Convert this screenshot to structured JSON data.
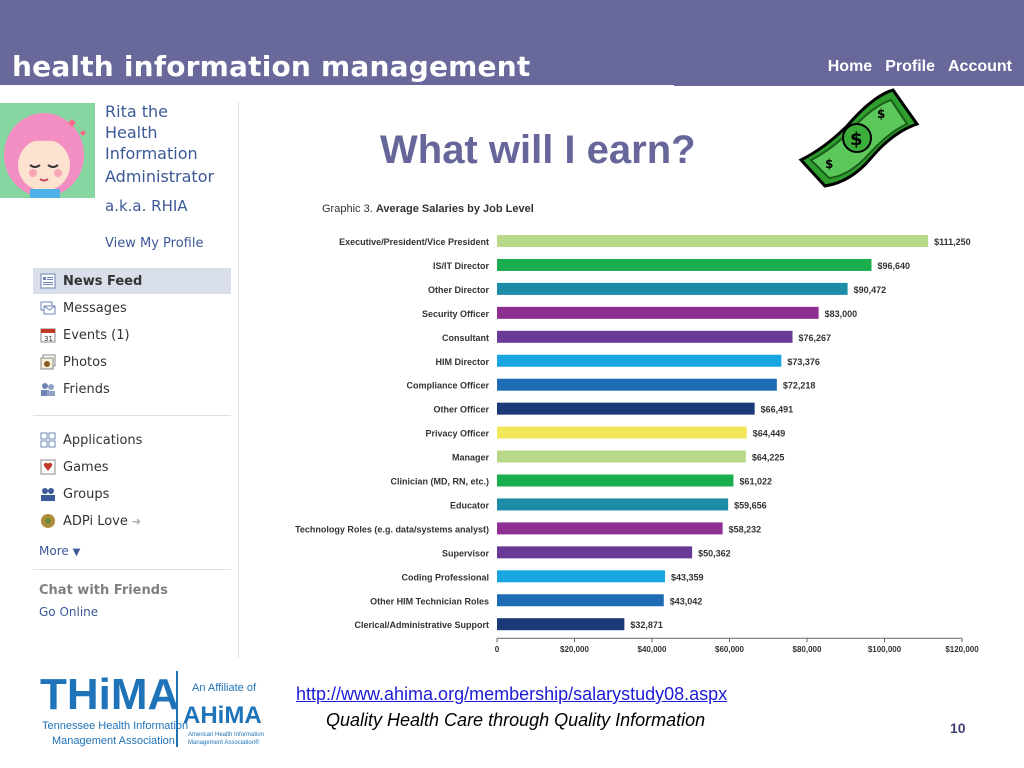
{
  "header": {
    "title": "health information management",
    "nav": [
      "Home",
      "Profile",
      "Account"
    ]
  },
  "profile": {
    "name_lines": [
      "Rita the",
      "Health",
      "Information",
      "Administrator"
    ],
    "aka": "a.k.a. RHIA",
    "view_profile": "View My Profile"
  },
  "sidebar": {
    "items": [
      {
        "label": "News Feed",
        "icon": "news-feed-icon",
        "active": true
      },
      {
        "label": "Messages",
        "icon": "messages-icon"
      },
      {
        "label": "Events (1)",
        "icon": "calendar-icon"
      },
      {
        "label": "Photos",
        "icon": "photos-icon"
      },
      {
        "label": "Friends",
        "icon": "friends-icon"
      },
      {
        "label": "Applications",
        "icon": "applications-icon"
      },
      {
        "label": "Games",
        "icon": "games-icon"
      },
      {
        "label": "Groups",
        "icon": "groups-icon"
      },
      {
        "label": "ADPi Love",
        "icon": "adpi-icon"
      }
    ],
    "more": "More",
    "chat_title": "Chat with Friends",
    "go_online": "Go Online"
  },
  "slide": {
    "title": "What will I earn?",
    "url": "http://www.ahima.org/membership/salarystudy08.aspx",
    "tagline": "Quality Health Care through Quality Information",
    "page_number": "10"
  },
  "logo": {
    "main": "THiMA",
    "sub1": "Tennessee Health Information",
    "sub2": "Management Association",
    "affiliate": "An Affiliate of",
    "ahima": "AHiMA",
    "ahima_sub1": "American Health Information",
    "ahima_sub2": "Management Association®"
  },
  "chart_data": {
    "type": "bar",
    "orientation": "horizontal",
    "title_prefix": "Graphic 3.",
    "title": "Average Salaries by Job Level",
    "categories": [
      "Executive/President/Vice President",
      "IS/IT Director",
      "Other Director",
      "Security Officer",
      "Consultant",
      "HIM Director",
      "Compliance Officer",
      "Other Officer",
      "Privacy Officer",
      "Manager",
      "Clinician (MD, RN, etc.)",
      "Educator",
      "Technology Roles (e.g. data/systems analyst)",
      "Supervisor",
      "Coding Professional",
      "Other HIM Technician Roles",
      "Clerical/Administrative Support"
    ],
    "values": [
      111250,
      96640,
      90472,
      83000,
      76267,
      73376,
      72218,
      66491,
      64449,
      64225,
      61022,
      59656,
      58232,
      50362,
      43359,
      43042,
      32871
    ],
    "value_labels": [
      "$111,250",
      "$96,640",
      "$90,472",
      "$83,000",
      "$76,267",
      "$73,376",
      "$72,218",
      "$66,491",
      "$64,449",
      "$64,225",
      "$61,022",
      "$59,656",
      "$58,232",
      "$50,362",
      "$43,359",
      "$43,042",
      "$32,871"
    ],
    "colors": [
      "#b8d88a",
      "#1aae4e",
      "#1d8ca6",
      "#8e2f92",
      "#6a3b96",
      "#17a6df",
      "#1e6cb4",
      "#1a3a78",
      "#f0e85a",
      "#b8d88a",
      "#1aae4e",
      "#1d8ca6",
      "#8e2f92",
      "#6a3b96",
      "#17a6df",
      "#1e6cb4",
      "#1a3a78"
    ],
    "xticks": [
      "0",
      "$20,000",
      "$40,000",
      "$60,000",
      "$80,000",
      "$100,000",
      "$120,000"
    ],
    "xlim": [
      0,
      120000
    ],
    "grid": false
  },
  "colors": {
    "header_bg": "#68689a",
    "title": "#66669a",
    "link": "#3b5998",
    "url": "#1c1cd6"
  }
}
